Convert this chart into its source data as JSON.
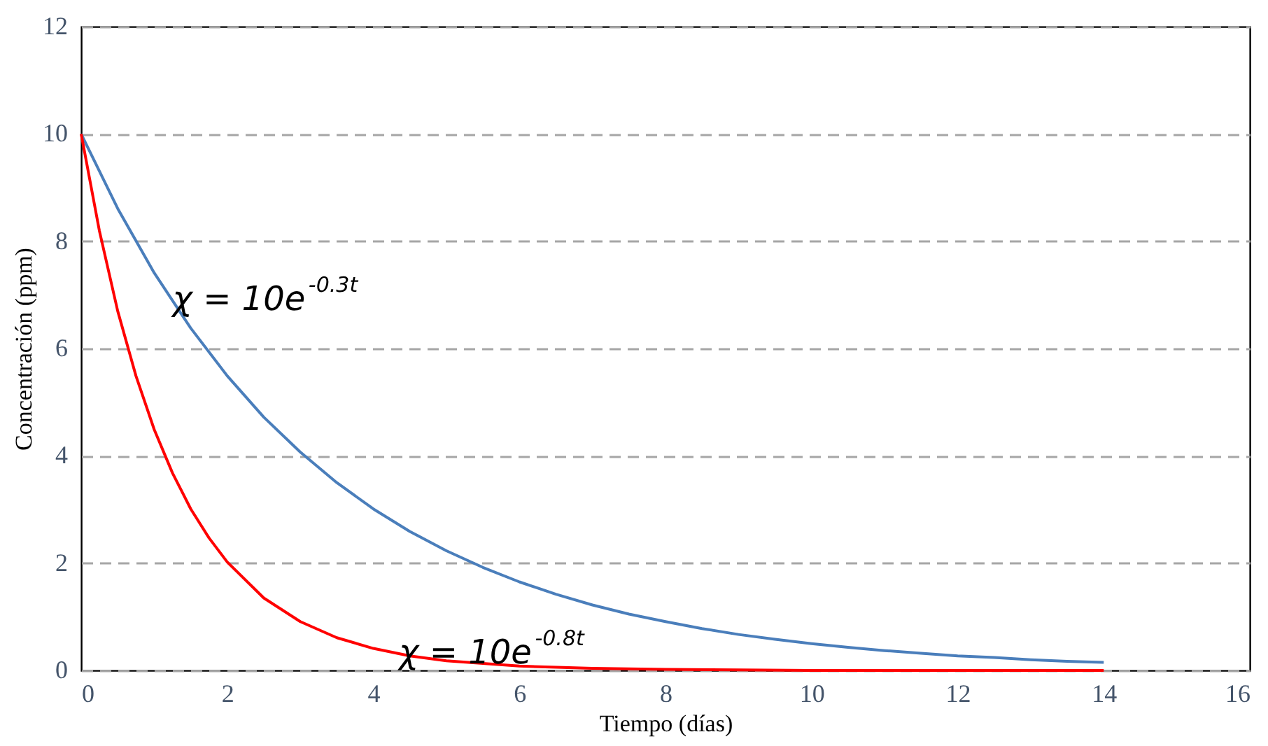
{
  "chart_data": {
    "type": "line",
    "xlabel": "Tiempo (días)",
    "ylabel": "Concentración (ppm)",
    "xlim": [
      0,
      16
    ],
    "xticks": [
      0,
      2,
      4,
      6,
      8,
      10,
      12,
      14,
      16
    ],
    "ylim": [
      0,
      12
    ],
    "yticks": [
      0,
      2,
      4,
      6,
      8,
      10,
      12
    ],
    "grid": "y",
    "marker": "none",
    "line_style": "solid",
    "series": [
      {
        "color": "#4a7ebb",
        "x": [
          0,
          0.5,
          1,
          1.5,
          2,
          2.5,
          3,
          3.5,
          4,
          4.5,
          5,
          5.5,
          6,
          6.5,
          7,
          7.5,
          8,
          8.5,
          9,
          9.5,
          10,
          10.5,
          11,
          11.5,
          12,
          12.5,
          13,
          13.5,
          14
        ],
        "values": [
          10,
          8.61,
          7.41,
          6.38,
          5.49,
          4.72,
          4.07,
          3.5,
          3.01,
          2.59,
          2.23,
          1.92,
          1.65,
          1.42,
          1.22,
          1.05,
          0.91,
          0.78,
          0.67,
          0.58,
          0.5,
          0.43,
          0.37,
          0.32,
          0.27,
          0.24,
          0.2,
          0.17,
          0.15
        ]
      },
      {
        "color": "#ff0000",
        "x": [
          0,
          0.25,
          0.5,
          0.75,
          1,
          1.25,
          1.5,
          1.75,
          2,
          2.5,
          3,
          3.5,
          4,
          4.5,
          5,
          6,
          7,
          8,
          9,
          10,
          12,
          14
        ],
        "values": [
          10,
          8.19,
          6.7,
          5.49,
          4.49,
          3.68,
          3.01,
          2.47,
          2.02,
          1.35,
          0.91,
          0.61,
          0.41,
          0.27,
          0.18,
          0.08,
          0.04,
          0.02,
          0.01,
          0,
          0,
          0
        ]
      }
    ],
    "annotations": [
      {
        "text": "χ = 10e$^{-0.3t}$",
        "x": 1.25,
        "y": 6.9
      },
      {
        "text": "χ = 10e$^{-0.8t}$",
        "x": 4.35,
        "y": 0.31
      }
    ]
  }
}
